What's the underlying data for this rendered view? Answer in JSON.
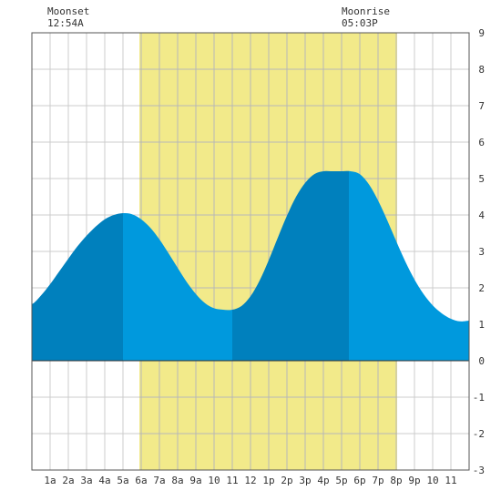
{
  "moon": {
    "moonset_label": "Moonset",
    "moonset_time": "12:54A",
    "moonrise_label": "Moonrise",
    "moonrise_time": "05:03P"
  },
  "chart_data": {
    "type": "area",
    "title": "",
    "xlabel": "",
    "ylabel": "",
    "xlim": [
      0,
      24
    ],
    "ylim": [
      -3,
      9
    ],
    "grid": true,
    "x_tick_labels": [
      "1a",
      "2a",
      "3a",
      "4a",
      "5a",
      "6a",
      "7a",
      "8a",
      "9a",
      "10",
      "11",
      "12",
      "1p",
      "2p",
      "3p",
      "4p",
      "5p",
      "6p",
      "7p",
      "8p",
      "9p",
      "10",
      "11"
    ],
    "y_tick_labels": [
      "-3",
      "-2",
      "-1",
      "0",
      "1",
      "2",
      "3",
      "4",
      "5",
      "6",
      "7",
      "8",
      "9"
    ],
    "daylight": {
      "start_hour": 5.9,
      "end_hour": 20.05
    },
    "moon_events": [
      {
        "event": "moonset",
        "hour": 0.9
      },
      {
        "event": "moonrise",
        "hour": 17.05
      }
    ],
    "tide_extremes": [
      {
        "type": "high",
        "hour": 4.95,
        "height": 4.05
      },
      {
        "type": "low",
        "hour": 11.05,
        "height": 1.4
      },
      {
        "type": "high",
        "hour": 17.4,
        "height": 5.2
      },
      {
        "type": "low",
        "hour": 23.6,
        "height": 1.05
      }
    ],
    "series": [
      {
        "x": [
          0,
          0.5,
          1,
          1.5,
          2,
          2.5,
          3,
          3.5,
          4,
          4.5,
          5,
          5.5,
          6,
          6.5,
          7,
          7.5,
          8,
          8.5,
          9,
          9.5,
          10,
          10.5,
          11,
          11.5,
          12,
          12.5,
          13,
          13.5,
          14,
          14.5,
          15,
          15.5,
          16,
          16.5,
          17,
          17.5,
          18,
          18.5,
          19,
          19.5,
          20,
          20.5,
          21,
          21.5,
          22,
          22.5,
          23,
          23.5,
          24
        ],
        "values": [
          1.55,
          1.79,
          2.1,
          2.45,
          2.8,
          3.14,
          3.43,
          3.68,
          3.88,
          4.0,
          4.05,
          4.02,
          3.88,
          3.65,
          3.33,
          2.95,
          2.55,
          2.16,
          1.83,
          1.58,
          1.44,
          1.4,
          1.4,
          1.5,
          1.77,
          2.2,
          2.76,
          3.38,
          3.98,
          4.5,
          4.88,
          5.12,
          5.2,
          5.2,
          5.2,
          5.2,
          5.12,
          4.84,
          4.4,
          3.86,
          3.28,
          2.72,
          2.23,
          1.83,
          1.52,
          1.3,
          1.15,
          1.08,
          1.1
        ]
      }
    ],
    "shade_bands": [
      {
        "from": 0,
        "to": 5,
        "shade": "dark"
      },
      {
        "from": 5,
        "to": 11,
        "shade": "light"
      },
      {
        "from": 11,
        "to": 17.4,
        "shade": "dark"
      },
      {
        "from": 17.4,
        "to": 24,
        "shade": "light"
      }
    ],
    "colors": {
      "daylight": "#f2ea8a",
      "tide_dark": "#0080bd",
      "tide_light": "#0099dd",
      "grid": "#cccccc",
      "border": "#555555"
    }
  }
}
